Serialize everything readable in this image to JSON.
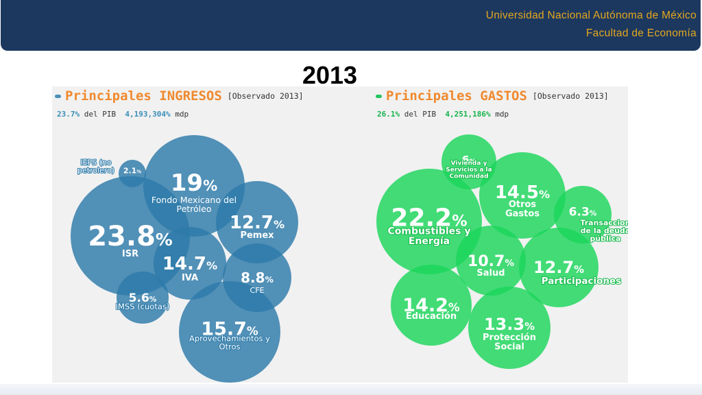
{
  "header": {
    "institution": "Universidad Nacional Autónoma de México",
    "faculty": "Facultad de Economía"
  },
  "slide": {
    "year": "2013"
  },
  "ingresos": {
    "title": "Principales INGRESOS",
    "observed": "[Observado 2013]",
    "pib_pct": "23.7%",
    "pib_text": "del PIB",
    "amount": "4,193,304%",
    "amount_unit": "mdp",
    "bubbles": [
      {
        "pct": "19",
        "name": [
          "Fondo Mexicano del",
          "Petróleo"
        ]
      },
      {
        "pct": "2.1",
        "name": [
          "IEPS (no",
          "petrolero)"
        ]
      },
      {
        "pct": "23.8",
        "name": [
          "ISR"
        ]
      },
      {
        "pct": "12.7",
        "name": [
          "Pemex"
        ]
      },
      {
        "pct": "14.7",
        "name": [
          "IVA"
        ]
      },
      {
        "pct": "8.8",
        "name": [
          "CFE"
        ]
      },
      {
        "pct": "5.6",
        "name": [
          "IMSS (cuotas)"
        ]
      },
      {
        "pct": "15.7",
        "name": [
          "Aprovechamientos y",
          "Otros"
        ]
      }
    ]
  },
  "gastos": {
    "title": "Principales GASTOS",
    "observed": "[Observado 2013]",
    "pib_pct": "26.1%",
    "pib_text": "del PIB",
    "amount": "4,251,186%",
    "amount_unit": "mdp",
    "bubbles": [
      {
        "pct": "6",
        "name": [
          "Vivienda y",
          "Servicios a la",
          "Comunidad"
        ]
      },
      {
        "pct": "22.2",
        "name": [
          "Combustibles y",
          "Energía"
        ]
      },
      {
        "pct": "14.5",
        "name": [
          "Otros",
          "Gastos"
        ]
      },
      {
        "pct": "6.3",
        "name": [
          "Transaccion",
          "de la deuda",
          "pública"
        ]
      },
      {
        "pct": "10.7",
        "name": [
          "Salud"
        ]
      },
      {
        "pct": "12.7",
        "name": [
          "Participaciones"
        ]
      },
      {
        "pct": "14.2",
        "name": [
          "Educación"
        ]
      },
      {
        "pct": "13.3",
        "name": [
          "Protección",
          "Social"
        ]
      }
    ]
  },
  "colors": {
    "header_bg": "#1d385f",
    "header_text": "#e3a71e",
    "ingresos_bubble": "#2d7aa9",
    "gastos_bubble": "#1bd65a",
    "title_orange": "#f0892e"
  }
}
